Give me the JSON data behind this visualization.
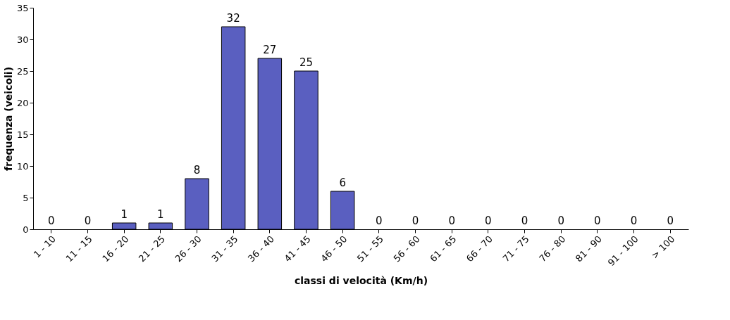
{
  "chart_data": {
    "type": "bar",
    "xlabel": "classi di velocità (Km/h)",
    "ylabel": "frequenza (veicoli)",
    "categories": [
      "1 - 10",
      "11 - 15",
      "16 - 20",
      "21 - 25",
      "26 - 30",
      "31 - 35",
      "36 - 40",
      "41 - 45",
      "46 - 50",
      "51 - 55",
      "56 - 60",
      "61 - 65",
      "66 - 70",
      "71 - 75",
      "76 - 80",
      "81 - 90",
      "91 - 100",
      "> 100"
    ],
    "values": [
      0,
      0,
      1,
      1,
      8,
      32,
      27,
      25,
      6,
      0,
      0,
      0,
      0,
      0,
      0,
      0,
      0,
      0
    ],
    "color": "#5a5fc0",
    "ylim": [
      0,
      35
    ],
    "yticks": [
      0,
      5,
      10,
      15,
      20,
      25,
      30,
      35
    ],
    "grid": false,
    "data_labels": true
  }
}
